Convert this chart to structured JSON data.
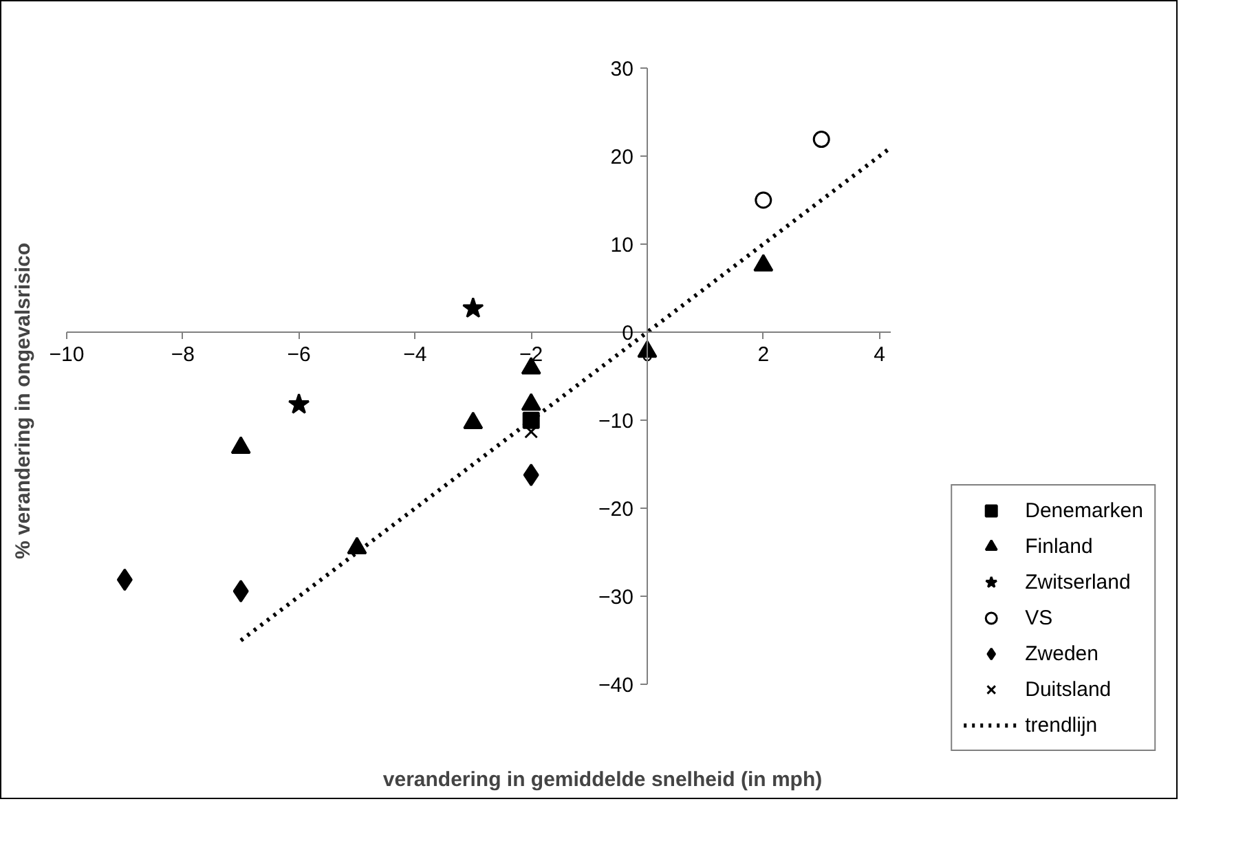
{
  "chart_data": {
    "type": "scatter",
    "xlabel": "verandering in gemiddelde snelheid (in mph)",
    "ylabel": "% verandering in ongevalsrisico",
    "xlim": [
      -10,
      4.2
    ],
    "ylim": [
      -40,
      30
    ],
    "xticks": [
      -10,
      -8,
      -6,
      -4,
      -2,
      0,
      2,
      4
    ],
    "yticks": [
      -40,
      -30,
      -20,
      -10,
      0,
      10,
      20,
      30
    ],
    "grid": false,
    "legend": "bottom right",
    "series": [
      {
        "name": "Denemarken",
        "color": "#000000",
        "marker": "square",
        "x": [
          -2
        ],
        "values": [
          -10
        ]
      },
      {
        "name": "Finland",
        "color": "#000000",
        "marker": "triangle",
        "x": [
          -7,
          -5,
          -3,
          -2,
          -2,
          0,
          2
        ],
        "values": [
          -13.1,
          -24.5,
          -10.3,
          -4.1,
          -8.2,
          -2.2,
          7.6
        ]
      },
      {
        "name": "Zwitserland",
        "color": "#000000",
        "marker": "star",
        "x": [
          -3,
          -6
        ],
        "values": [
          2.7,
          -8.2
        ]
      },
      {
        "name": "VS",
        "color": "#000000",
        "marker": "circle",
        "x": [
          2,
          3
        ],
        "values": [
          15,
          21.9
        ]
      },
      {
        "name": "Zweden",
        "color": "#000000",
        "marker": "diamond",
        "x": [
          -9,
          -7,
          -2
        ],
        "values": [
          -28.1,
          -29.4,
          -16.2
        ]
      },
      {
        "name": "Duitsland",
        "color": "#000000",
        "marker": "cross",
        "x": [
          -2
        ],
        "values": [
          -11.3
        ]
      },
      {
        "name": "trendlijn",
        "type": "line",
        "color": "#000000",
        "marker": "none",
        "line_style": "dotted",
        "x": [
          -7,
          4.2
        ],
        "values": [
          -35,
          21
        ]
      }
    ]
  }
}
